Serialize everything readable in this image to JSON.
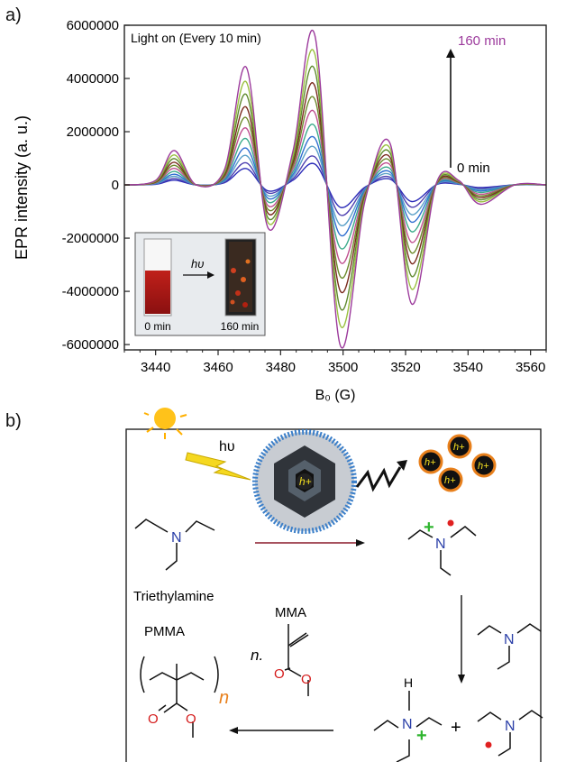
{
  "panel_a": {
    "label": "a)"
  },
  "panel_b": {
    "label": "b)"
  },
  "chart_data": {
    "type": "line",
    "title": "",
    "xlabel": "B₀ (G)",
    "ylabel": "EPR intensity (a. u.)",
    "xlim": [
      3430,
      3565
    ],
    "ylim": [
      -6200000,
      6000000
    ],
    "x_ticks": [
      "3440",
      "3460",
      "3480",
      "3500",
      "3520",
      "3540",
      "3560"
    ],
    "y_ticks": [
      "6000000",
      "4000000",
      "2000000",
      "0",
      "-2000000",
      "-4000000",
      "-6000000"
    ],
    "grid": false,
    "annotation_top_left": "Light on (Every 10 min)",
    "arrow_top_label": "160 min",
    "arrow_bottom_label": "0 min",
    "feature_x": [
      3430,
      3440,
      3446,
      3453,
      3462,
      3469,
      3476,
      3484,
      3491,
      3499,
      3507,
      3515,
      3522,
      3530,
      3537,
      3544,
      3555,
      3565
    ],
    "feature_shape": [
      0,
      0.03,
      0.23,
      0,
      0.1,
      0.79,
      -0.29,
      0.23,
      1.0,
      -1.07,
      -0.11,
      0.28,
      -0.8,
      0.02,
      0.03,
      -0.13,
      0,
      0
    ],
    "series": [
      {
        "amplitude": 780000,
        "color": "#2b2bb8"
      },
      {
        "amplitude": 1050000,
        "color": "#4d3fb0"
      },
      {
        "amplitude": 1400000,
        "color": "#5aa0c8"
      },
      {
        "amplitude": 1750000,
        "color": "#2f6fd0"
      },
      {
        "amplitude": 2200000,
        "color": "#3aaa8a"
      },
      {
        "amplitude": 2700000,
        "color": "#c05090"
      },
      {
        "amplitude": 3200000,
        "color": "#6c8a2a"
      },
      {
        "amplitude": 3700000,
        "color": "#7a2b1e"
      },
      {
        "amplitude": 4300000,
        "color": "#5f8a2f"
      },
      {
        "amplitude": 4900000,
        "color": "#9ac040"
      },
      {
        "amplitude": 5600000,
        "color": "#9c3a9c"
      }
    ],
    "inset": {
      "left_caption": "0 min",
      "right_caption": "160 min",
      "arrow_label": "hυ"
    }
  },
  "scheme": {
    "light_label": "hυ",
    "hole_label": "h+",
    "triethylamine_label": "Triethylamine",
    "pmma_label": "PMMA",
    "mma_label": "MMA",
    "n_label": "n.",
    "subscript_n": "n",
    "plus_sign": "+",
    "hydrogen_label": "H",
    "nitrogen_label": "N"
  },
  "colors": {
    "nitrogen": "#2a3fa8",
    "oxygen": "#d41a1a",
    "cation": "#2fb52f",
    "radical": "#e02020",
    "orange": "#e8801c"
  }
}
